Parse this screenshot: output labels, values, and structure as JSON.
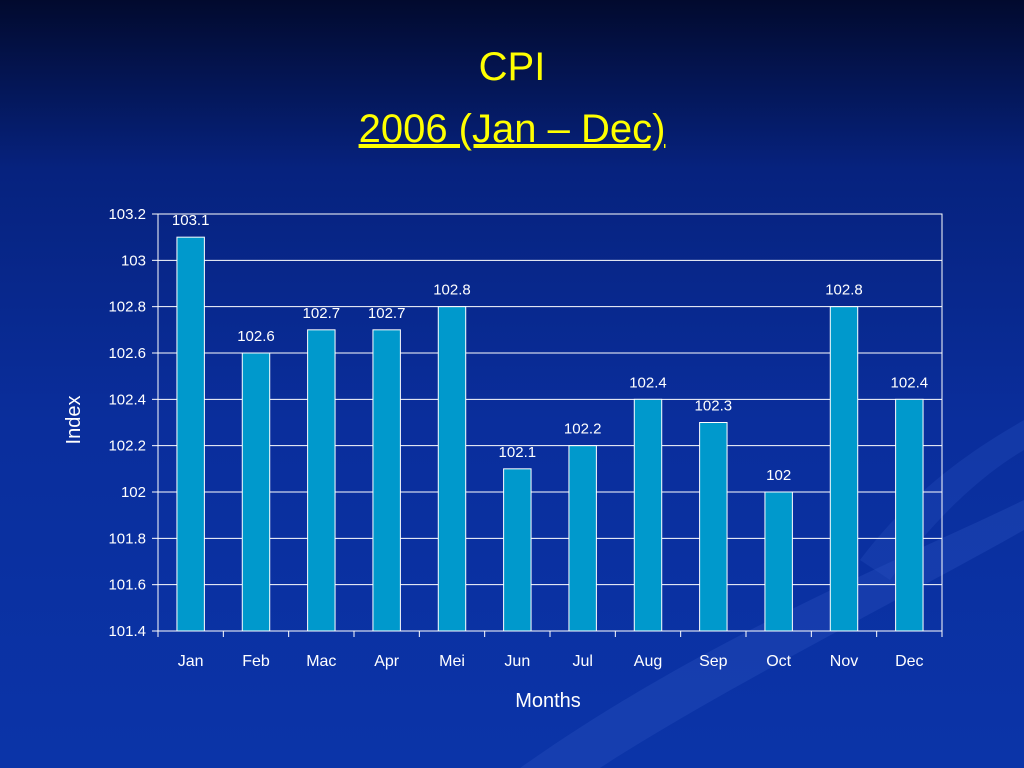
{
  "slide": {
    "title_line1": "CPI",
    "title_line2": "2006 (Jan – Dec)",
    "title_color": "#ffff00",
    "background_color": "#0a2e9c"
  },
  "chart_data": {
    "type": "bar",
    "categories": [
      "Jan",
      "Feb",
      "Mac",
      "Apr",
      "Mei",
      "Jun",
      "Jul",
      "Aug",
      "Sep",
      "Oct",
      "Nov",
      "Dec"
    ],
    "values": [
      103.1,
      102.6,
      102.7,
      102.7,
      102.8,
      102.1,
      102.2,
      102.4,
      102.3,
      102,
      102.8,
      102.4
    ],
    "value_labels": [
      "103.1",
      "102.6",
      "102.7",
      "102.7",
      "102.8",
      "102.1",
      "102.2",
      "102.4",
      "102.3",
      "102",
      "102.8",
      "102.4"
    ],
    "xlabel": "Months",
    "ylabel": "Index",
    "ylim": [
      101.4,
      103.2
    ],
    "y_ticks": [
      "101.4",
      "101.6",
      "101.8",
      "102",
      "102.2",
      "102.4",
      "102.6",
      "102.8",
      "103",
      "103.2"
    ],
    "grid": true,
    "legend": false,
    "bar_color": "#0099cc",
    "grid_color": "#ffffff"
  }
}
